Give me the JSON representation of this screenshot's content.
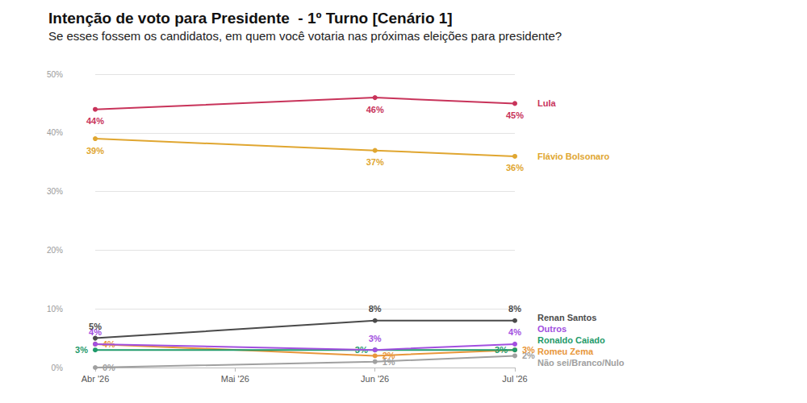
{
  "chart_data": {
    "type": "line",
    "title": "Intenção de voto para Presidente  - 1º Turno [Cenário 1]",
    "subtitle": "Se esses fossem os candidatos, em quem você votaria nas próximas eleições para presidente?",
    "categories": [
      "Abr '26",
      "Mai '26",
      "Jun '26",
      "Jul '26"
    ],
    "series": [
      {
        "name": "Lula",
        "color": "#c8335a",
        "values": [
          44,
          null,
          46,
          45
        ],
        "value_labels": [
          "44%",
          null,
          "46%",
          "45%"
        ]
      },
      {
        "name": "Flávio Bolsonaro",
        "color": "#e0a630",
        "values": [
          39,
          null,
          37,
          36
        ],
        "value_labels": [
          "39%",
          null,
          "37%",
          "36%"
        ]
      },
      {
        "name": "Renan Santos",
        "color": "#4a4a4a",
        "values": [
          5,
          null,
          8,
          8
        ],
        "value_labels": [
          "5%",
          null,
          "8%",
          "8%"
        ]
      },
      {
        "name": "Outros",
        "color": "#a24fe0",
        "values": [
          4,
          null,
          3,
          4
        ],
        "value_labels": [
          "4%",
          null,
          "3%",
          "4%"
        ]
      },
      {
        "name": "Ronaldo Caiado",
        "color": "#1f9a6a",
        "values": [
          3,
          null,
          3,
          3
        ],
        "value_labels": [
          "3%",
          null,
          "3%",
          "3%"
        ]
      },
      {
        "name": "Romeu Zema",
        "color": "#e8963a",
        "values": [
          4,
          null,
          2,
          3
        ],
        "value_labels": [
          "4%",
          null,
          "2%",
          "3%"
        ]
      },
      {
        "name": "Não sei/Branco/Nulo",
        "color": "#a0a0a0",
        "values": [
          0,
          null,
          1,
          2
        ],
        "value_labels": [
          "0%",
          null,
          "1%",
          "2%"
        ]
      }
    ],
    "ylim": [
      0,
      50
    ],
    "yticks": [
      {
        "value": 0,
        "label": "0%"
      },
      {
        "value": 10,
        "label": "10%"
      },
      {
        "value": 20,
        "label": "20%"
      },
      {
        "value": 30,
        "label": "30%"
      },
      {
        "value": 40,
        "label": "40%"
      },
      {
        "value": 50,
        "label": "50%"
      }
    ],
    "grid": true,
    "data_labels": true,
    "marker": "circle"
  }
}
